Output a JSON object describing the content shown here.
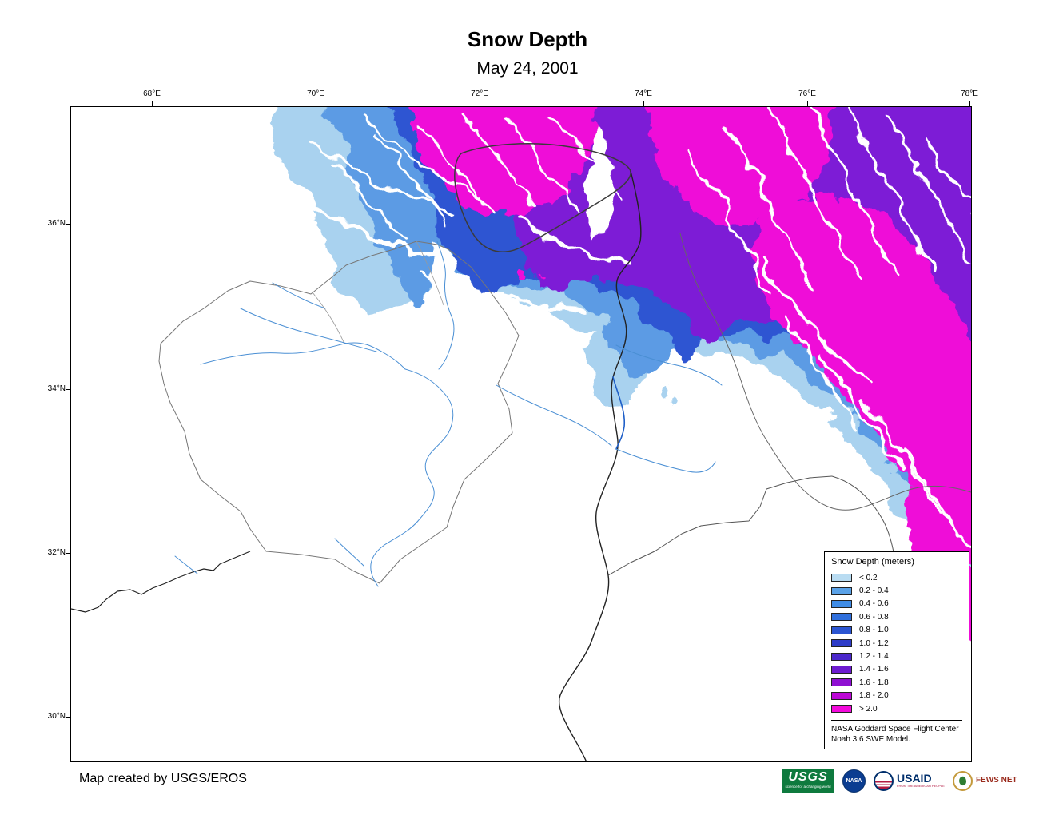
{
  "title": "Snow Depth",
  "subtitle": "May 24, 2001",
  "map": {
    "x_ticks": [
      "68°E",
      "70°E",
      "72°E",
      "74°E",
      "76°E",
      "78°E"
    ],
    "y_ticks": [
      "36°N",
      "34°N",
      "32°N",
      "30°N"
    ]
  },
  "legend": {
    "title": "Snow Depth (meters)",
    "items": [
      {
        "label": "< 0.2",
        "color": "#b9dcf2"
      },
      {
        "label": "0.2 - 0.4",
        "color": "#5aa2e8"
      },
      {
        "label": "0.4 - 0.6",
        "color": "#3f8ce6"
      },
      {
        "label": "0.6 - 0.8",
        "color": "#2f6fdc"
      },
      {
        "label": "0.8 - 1.0",
        "color": "#2b55d2"
      },
      {
        "label": "1.0 - 1.2",
        "color": "#2e3cc8"
      },
      {
        "label": "1.2 - 1.4",
        "color": "#4b28cc"
      },
      {
        "label": "1.4 - 1.6",
        "color": "#6d1bd0"
      },
      {
        "label": "1.6 - 1.8",
        "color": "#8f10d2"
      },
      {
        "label": "1.8 - 2.0",
        "color": "#bc08d6"
      },
      {
        "label": "> 2.0",
        "color": "#f40adc"
      }
    ],
    "source": [
      "NASA Goddard Space Flight Center",
      "Noah 3.6 SWE Model."
    ]
  },
  "footer": {
    "credit": "Map created by USGS/EROS"
  },
  "logos": {
    "usgs": {
      "label": "USGS",
      "tagline": "science for a changing world"
    },
    "nasa": {
      "label": "NASA"
    },
    "usaid": {
      "label": "USAID",
      "tagline": "FROM THE AMERICAN PEOPLE"
    },
    "fews": {
      "label": "FEWS NET"
    }
  }
}
